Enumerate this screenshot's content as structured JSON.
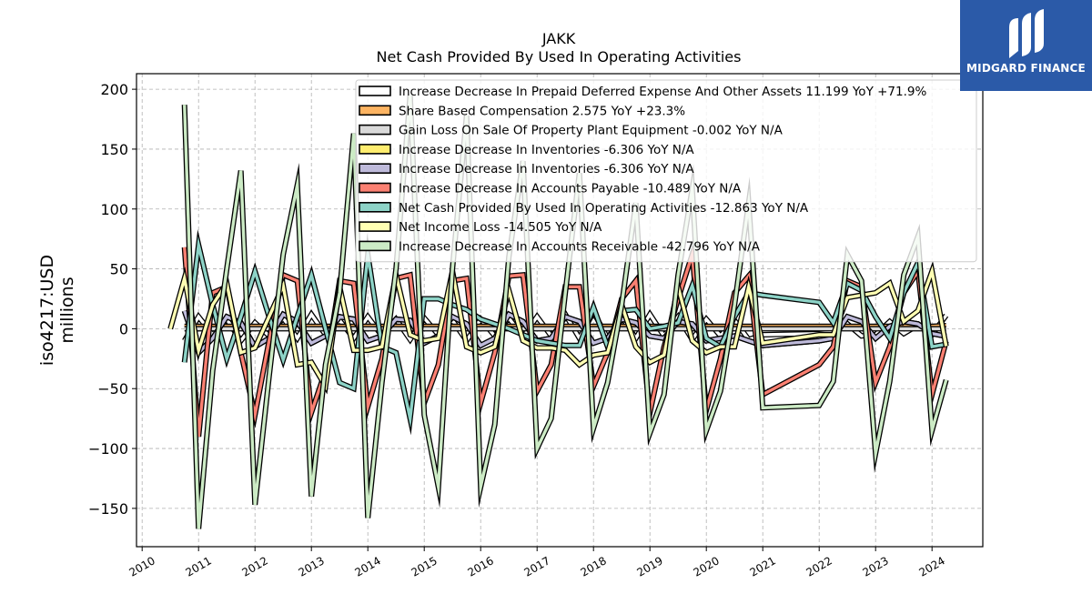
{
  "chart_data": {
    "type": "line",
    "title": "JAKK",
    "subtitle": "Net Cash Provided By Used In Operating Activities",
    "ylabel": "iso4217:USD\nmillions",
    "xlim": [
      2009.9,
      2024.9
    ],
    "ylim": [
      -182,
      213
    ],
    "x_ticks": [
      2010,
      2011,
      2012,
      2013,
      2014,
      2015,
      2016,
      2017,
      2018,
      2019,
      2020,
      2021,
      2022,
      2023,
      2024
    ],
    "y_ticks": [
      -150,
      -100,
      -50,
      0,
      50,
      100,
      150,
      200
    ],
    "grid": true,
    "legend_position": "top-right",
    "x": [
      2010.5,
      2010.75,
      2011.0,
      2011.25,
      2011.5,
      2011.75,
      2012.0,
      2012.25,
      2012.5,
      2012.75,
      2013.0,
      2013.25,
      2013.5,
      2013.75,
      2014.0,
      2014.25,
      2014.5,
      2014.75,
      2015.0,
      2015.25,
      2015.5,
      2015.75,
      2016.0,
      2016.25,
      2016.5,
      2016.75,
      2017.0,
      2017.25,
      2017.5,
      2017.75,
      2018.0,
      2018.25,
      2018.5,
      2018.75,
      2019.0,
      2019.25,
      2019.5,
      2019.75,
      2020.0,
      2020.25,
      2020.5,
      2020.75,
      2021.0,
      2022.0,
      2022.25,
      2022.5,
      2022.75,
      2023.0,
      2023.25,
      2023.5,
      2023.75,
      2024.0,
      2024.25
    ],
    "series": [
      {
        "name": "Increase Decrease In Prepaid Deferred Expense And Other Assets  11.199 YoY +71.9%",
        "color": "#ffffff",
        "values": [
          null,
          -10,
          10,
          -5,
          8,
          -10,
          5,
          -6,
          9,
          -8,
          12,
          -5,
          7,
          -8,
          10,
          -6,
          8,
          -9,
          9,
          -5,
          7,
          -10,
          8,
          -6,
          9,
          -7,
          10,
          -6,
          12,
          -8,
          14,
          -8,
          10,
          -8,
          12,
          -6,
          10,
          -9,
          8,
          -6,
          7,
          -9,
          -5,
          -4,
          -3,
          4,
          -6,
          -5,
          6,
          -4,
          3,
          -5,
          11.2
        ]
      },
      {
        "name": "Share Based Compensation  2.575 YoY +23.3%",
        "color": "#fdb462",
        "values": [
          null,
          2,
          2,
          2,
          2,
          2,
          2,
          2,
          2,
          2,
          2,
          2,
          2,
          2,
          2,
          2,
          2,
          2,
          2,
          2,
          2,
          2,
          2,
          2,
          2,
          2,
          2,
          2,
          2,
          2,
          2,
          2,
          2,
          2,
          2,
          2,
          2,
          2,
          2,
          2,
          2,
          2,
          2,
          2,
          2,
          2,
          2,
          2,
          2,
          2,
          2,
          2,
          2.6
        ]
      },
      {
        "name": "Gain Loss On Sale Of Property Plant Equipment  -0.002 YoY N/A",
        "color": "#d9d9d9",
        "values": [
          null,
          0,
          0,
          0,
          0,
          0,
          0,
          0,
          0,
          0,
          0,
          0,
          0,
          0,
          0,
          0,
          0,
          0,
          0,
          0,
          0,
          0,
          0,
          0,
          0,
          0,
          0,
          0,
          0,
          0,
          0,
          0,
          0,
          0,
          0,
          0,
          0,
          0,
          0,
          0,
          0,
          0,
          0,
          0,
          0,
          0,
          0,
          0,
          0,
          0,
          0,
          0,
          0
        ]
      },
      {
        "name": "Increase Decrease In Inventories  -6.306 YoY N/A",
        "color": "#ffed6f",
        "values": [
          null,
          15,
          -20,
          -8,
          10,
          5,
          -15,
          -8,
          12,
          6,
          -12,
          -6,
          10,
          8,
          -10,
          -6,
          8,
          7,
          -12,
          -6,
          10,
          4,
          -14,
          -8,
          12,
          6,
          -10,
          -8,
          10,
          6,
          -12,
          -8,
          8,
          5,
          -6,
          -8,
          6,
          4,
          -10,
          -8,
          -6,
          -10,
          -14,
          -10,
          -8,
          10,
          6,
          -8,
          2,
          6,
          4,
          -4,
          -6.3
        ]
      },
      {
        "name": "Increase Decrease In Inventories  -6.306 YoY N/A",
        "color": "#bebada",
        "values": [
          null,
          15,
          -20,
          -8,
          10,
          5,
          -15,
          -8,
          12,
          6,
          -12,
          -6,
          10,
          8,
          -10,
          -6,
          8,
          7,
          -12,
          -6,
          10,
          4,
          -14,
          -8,
          12,
          6,
          -10,
          -8,
          10,
          6,
          -12,
          -8,
          8,
          5,
          -6,
          -8,
          6,
          4,
          -10,
          -8,
          -6,
          -10,
          -14,
          -10,
          -8,
          10,
          6,
          -8,
          2,
          6,
          4,
          -4,
          -6.3
        ]
      },
      {
        "name": "Increase Decrease In Accounts Payable  -10.489 YoY N/A",
        "color": "#fb8072",
        "values": [
          null,
          68,
          -90,
          30,
          35,
          -20,
          -72,
          -10,
          45,
          40,
          -70,
          -35,
          40,
          38,
          -65,
          -25,
          42,
          45,
          -62,
          -30,
          40,
          42,
          -62,
          -20,
          44,
          45,
          -52,
          -30,
          35,
          35,
          -48,
          -20,
          25,
          40,
          -70,
          -15,
          25,
          62,
          -68,
          -25,
          30,
          44,
          -55,
          -30,
          -15,
          40,
          35,
          -45,
          -15,
          30,
          48,
          -55,
          -10.5
        ]
      },
      {
        "name": "Net Cash Provided By Used In Operating Activities  -12.863 YoY N/A",
        "color": "#8dd3c7",
        "values": [
          null,
          -28,
          70,
          20,
          -25,
          10,
          48,
          10,
          -26,
          10,
          45,
          0,
          -45,
          -50,
          62,
          -15,
          -20,
          -75,
          25,
          25,
          20,
          16,
          8,
          4,
          0,
          -5,
          -10,
          -12,
          -14,
          -14,
          18,
          -15,
          15,
          16,
          0,
          2,
          5,
          36,
          -8,
          -15,
          10,
          30,
          28,
          22,
          5,
          38,
          32,
          10,
          -8,
          30,
          55,
          -15,
          -12.9
        ]
      },
      {
        "name": "Net Income Loss  -14.505 YoY N/A",
        "color": "#ffffb3",
        "values": [
          0,
          42,
          -18,
          20,
          38,
          -20,
          -16,
          10,
          36,
          -30,
          -28,
          -48,
          35,
          -18,
          -18,
          -15,
          45,
          -5,
          -10,
          -8,
          48,
          -15,
          -20,
          -15,
          32,
          -10,
          -16,
          -16,
          -18,
          -30,
          -22,
          -20,
          20,
          -15,
          -28,
          -22,
          35,
          -10,
          -20,
          -15,
          -15,
          35,
          -12,
          -5,
          -5,
          26,
          28,
          30,
          38,
          6,
          15,
          48,
          -14.5
        ]
      },
      {
        "name": "Increase Decrease In Accounts Receivable  -42.796 YoY N/A",
        "color": "#ccebc5",
        "values": [
          null,
          187,
          -167,
          -35,
          50,
          132,
          -147,
          -40,
          62,
          120,
          -140,
          -30,
          30,
          163,
          -158,
          -45,
          50,
          195,
          -72,
          -132,
          50,
          178,
          -132,
          -80,
          60,
          140,
          -100,
          -75,
          30,
          130,
          -83,
          -45,
          20,
          105,
          -87,
          -55,
          45,
          117,
          -85,
          -52,
          20,
          105,
          -66,
          -64,
          -44,
          62,
          40,
          -104,
          -44,
          45,
          77,
          -85,
          -42.8
        ]
      }
    ]
  },
  "watermark": {
    "label": "MIDGARD FINANCE",
    "bg_color": "#2b5aa8"
  }
}
